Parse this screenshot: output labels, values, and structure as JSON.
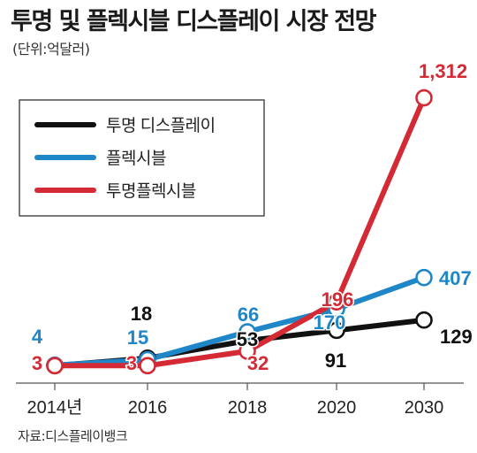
{
  "title": "투명 및 플렉시블 디스플레이 시장 전망",
  "unit": "(단위:억달러)",
  "source": "자료:디스플레이뱅크",
  "chart_data": {
    "type": "line",
    "title": "투명 및 플렉시블 디스플레이 시장 전망",
    "ylabel": "(단위:억달러)",
    "legend_position": "top-left",
    "grid": false,
    "categories": [
      "2014년",
      "2016",
      "2018",
      "2020",
      "2030"
    ],
    "series": [
      {
        "name": "투명 디스플레이",
        "color": "#111111",
        "values": [
          3,
          18,
          53,
          91,
          129
        ]
      },
      {
        "name": "플렉시블",
        "color": "#1f86c7",
        "values": [
          4,
          15,
          66,
          170,
          407
        ]
      },
      {
        "name": "투명플렉시블",
        "color": "#d42a35",
        "values": [
          3,
          3,
          32,
          196,
          1312
        ]
      }
    ]
  }
}
